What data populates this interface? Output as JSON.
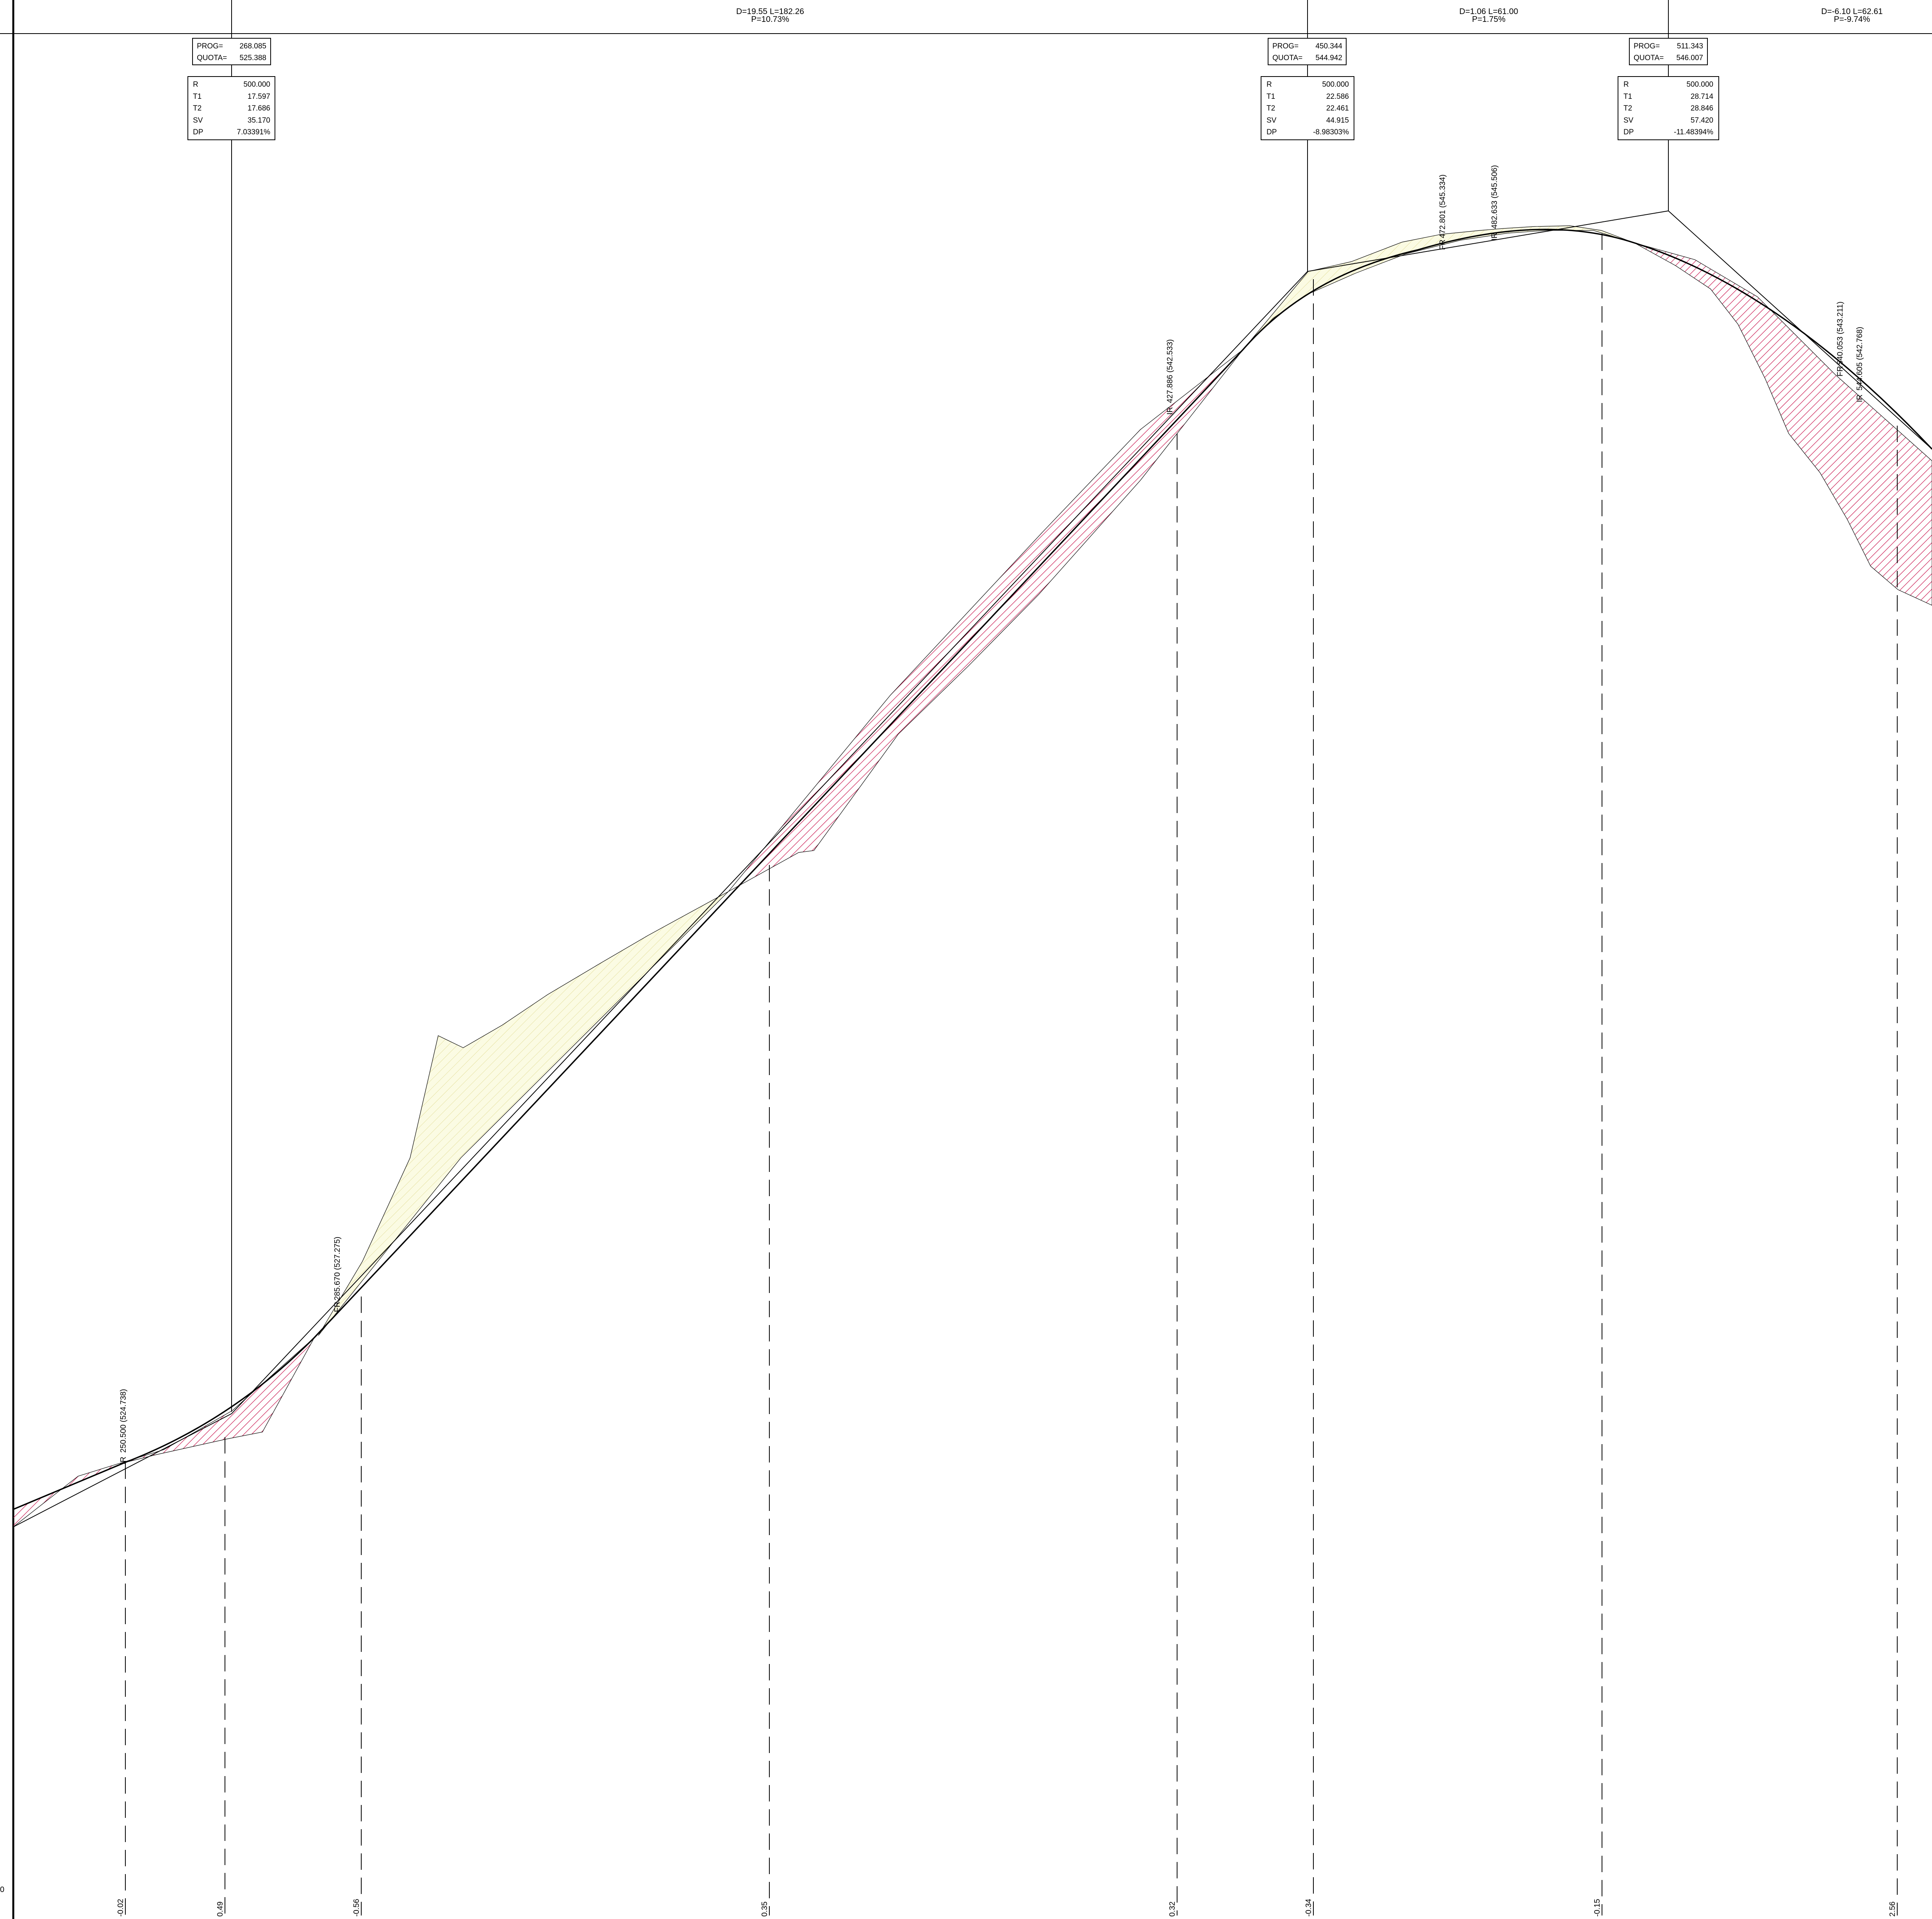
{
  "colors": {
    "cut": "#c8104a",
    "fill": "#d9d27a",
    "fill_bg": "#fbfbe3",
    "line": "#000000"
  },
  "segments": [
    {
      "d": "D=19.55 L=182.26",
      "p": "P=10.73%"
    },
    {
      "d": "D=1.06 L=61.00",
      "p": "P=1.75%"
    },
    {
      "d": "D=-6.10 L=62.61",
      "p": "P=-9.74%"
    }
  ],
  "vertices": [
    {
      "prog_label": "PROG=",
      "prog": "268.085",
      "quota_label": "QUOTA=",
      "quota": "525.388",
      "curve": [
        {
          "k": "R",
          "v": "500.000"
        },
        {
          "k": "T1",
          "v": "17.597"
        },
        {
          "k": "T2",
          "v": "17.686"
        },
        {
          "k": "SV",
          "v": "35.170"
        },
        {
          "k": "DP",
          "v": "7.03391%"
        }
      ]
    },
    {
      "prog_label": "PROG=",
      "prog": "450.344",
      "quota_label": "QUOTA=",
      "quota": "544.942",
      "curve": [
        {
          "k": "R",
          "v": "500.000"
        },
        {
          "k": "T1",
          "v": "22.586"
        },
        {
          "k": "T2",
          "v": "22.461"
        },
        {
          "k": "SV",
          "v": "44.915"
        },
        {
          "k": "DP",
          "v": "-8.98303%"
        }
      ]
    },
    {
      "prog_label": "PROG=",
      "prog": "511.343",
      "quota_label": "QUOTA=",
      "quota": "546.007",
      "curve": [
        {
          "k": "R",
          "v": "500.000"
        },
        {
          "k": "T1",
          "v": "28.714"
        },
        {
          "k": "T2",
          "v": "28.846"
        },
        {
          "k": "SV",
          "v": "57.420"
        },
        {
          "k": "DP",
          "v": "-11.48394%"
        }
      ]
    }
  ],
  "point_labels": [
    {
      "tag": "IR",
      "text": "250.500  (524.738)"
    },
    {
      "tag": "FR",
      "text": "285.670  (527.275)"
    },
    {
      "tag": "IR",
      "text": "427.886  (542.533)"
    },
    {
      "tag": "FR",
      "text": "472.801  (545.334)"
    },
    {
      "tag": "IR",
      "text": "482.633  (545.506)"
    },
    {
      "tag": "FR",
      "text": "540.053  (543.211)"
    },
    {
      "tag": "IR",
      "text": "544.605  (542.768)"
    }
  ],
  "offsets": [
    "-0.02",
    "0.49",
    "-0.56",
    "0.35",
    "0.32",
    "-0.34",
    "-0.15",
    "2.56"
  ],
  "left_mark": "0"
}
